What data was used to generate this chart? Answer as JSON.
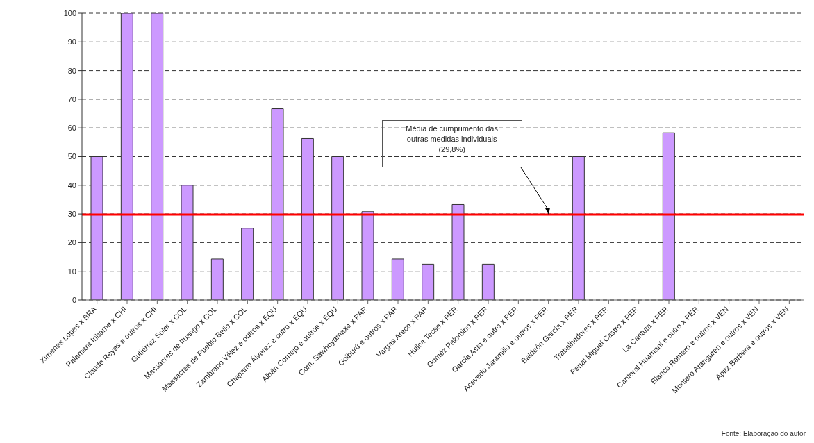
{
  "chart_data": {
    "type": "bar",
    "categories": [
      "Ximenes Lopes x BRA",
      "Palamara Iribarne x CHI",
      "Claude Reyes e outros x CHI",
      "Gutiérrez Soler x COL",
      "Massacres de Ituango x COL",
      "Massacres de Pueblo Bello x COL",
      "Zambrano Vélez e outros x EQU",
      "Chaparro Álvarez e outro x EQU",
      "Albán Cornejo e outros x EQU",
      "Com. Sawhoyamaxa x PAR",
      "Goiburú e outros x PAR",
      "Vargas Areco x PAR",
      "Huilca Tecse x PER",
      "Goméz Palomino x PER",
      "García Asto e outro x PER",
      "Acevedo Jaramillo e outros x PER",
      "Baldeón García x PER",
      "Trabalhadores x PER",
      "Penal Miguel Castro x PER",
      "La Cantuta x PER",
      "Cantoral Huamaní e outro x PER",
      "Blanco Romero e outros x VEN",
      "Montero Aranguren e outros x VEN",
      "Apitz Barbera e outros x VEN"
    ],
    "values": [
      50,
      100,
      100,
      40,
      14.3,
      25,
      66.7,
      56.3,
      50,
      30.8,
      14.3,
      12.5,
      33.3,
      12.5,
      0,
      0,
      50,
      0,
      0,
      58.3,
      0,
      0,
      0,
      0
    ],
    "color": "#cc99ff",
    "ylim": [
      0,
      100
    ],
    "yticks": [
      0,
      10,
      20,
      30,
      40,
      50,
      60,
      70,
      80,
      90,
      100
    ],
    "grid": "y",
    "ref_lines": [
      {
        "axis": "y",
        "value": 29.8,
        "color": "#ff0000"
      }
    ],
    "annotations": [
      "Média de cumprimento das outras medidas individuais (29,8%)",
      "Fonte: Elaboração do autor"
    ]
  }
}
